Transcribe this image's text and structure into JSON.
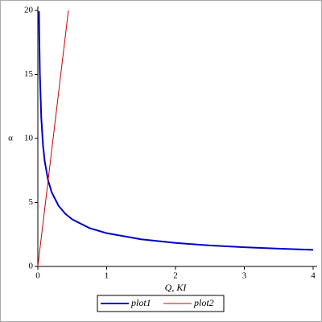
{
  "chart_data": {
    "type": "line",
    "xlabel": "Q, KI",
    "ylabel": "α",
    "xlim": [
      0,
      4
    ],
    "ylim": [
      0,
      20
    ],
    "xticks": [
      0,
      1,
      2,
      3,
      4
    ],
    "yticks": [
      0,
      5,
      10,
      15,
      20
    ],
    "legend": "bottom",
    "series": [
      {
        "name": "plot1",
        "color": "#0000c8",
        "x": [
          0.017,
          0.02,
          0.03,
          0.05,
          0.075,
          0.1,
          0.15,
          0.2,
          0.3,
          0.4,
          0.5,
          0.75,
          1,
          1.5,
          2,
          2.5,
          3,
          3.5,
          4
        ],
        "values": [
          19.94,
          18.38,
          15.01,
          11.63,
          9.49,
          8.22,
          6.71,
          5.81,
          4.75,
          4.11,
          3.68,
          3.0,
          2.6,
          2.12,
          1.84,
          1.64,
          1.5,
          1.39,
          1.3
        ]
      },
      {
        "name": "plot2",
        "color": "#c80000",
        "x": [
          0,
          0.444
        ],
        "values": [
          0,
          20
        ]
      }
    ]
  }
}
